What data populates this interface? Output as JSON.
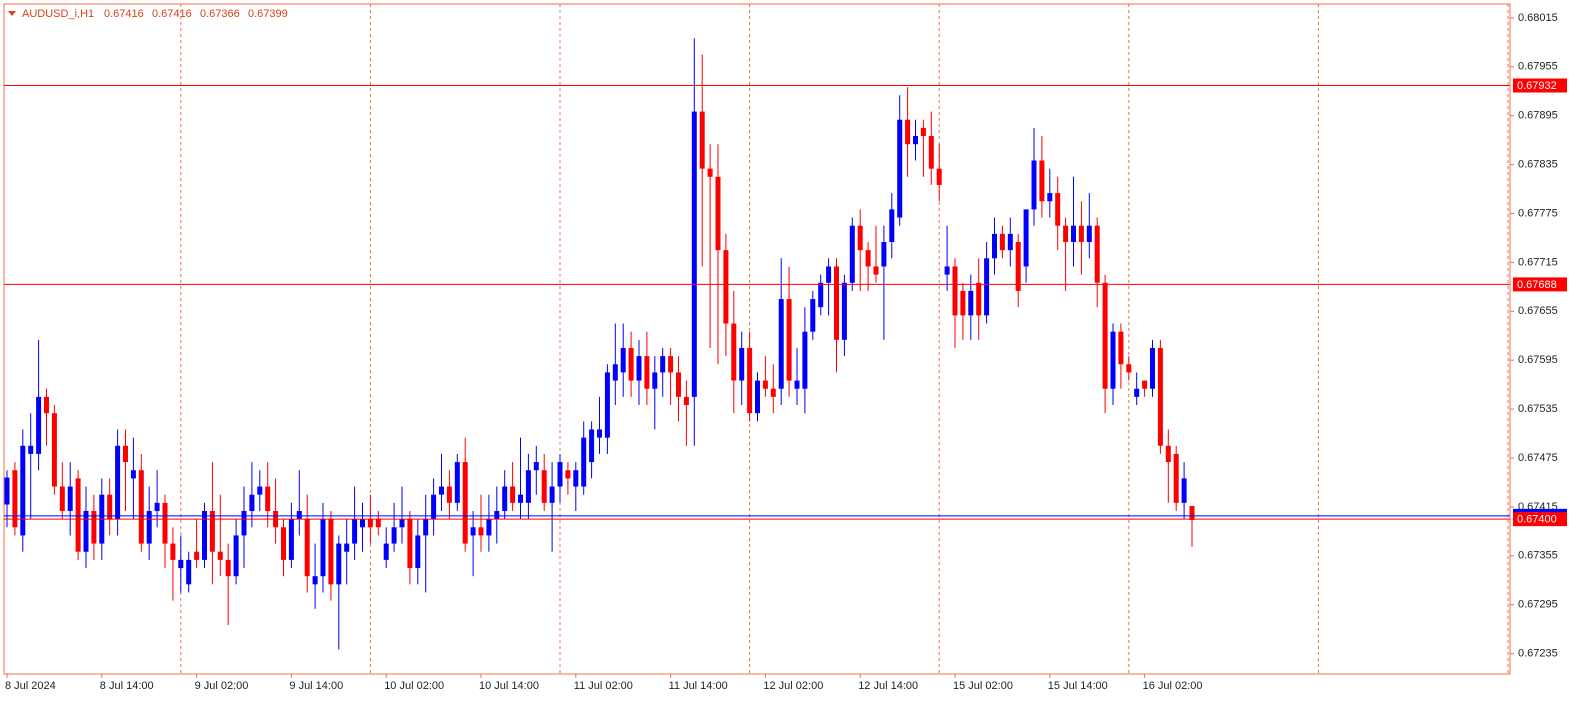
{
  "chart_data": {
    "type": "candlestick",
    "title": "AUDUSD_i,H1",
    "categories": [
      "8 Jul 2024",
      null,
      null,
      null,
      null,
      null,
      null,
      null,
      null,
      null,
      null,
      null,
      "8 Jul 14:00",
      null,
      null,
      null,
      null,
      null,
      null,
      null,
      null,
      null,
      null,
      null,
      "9 Jul 02:00",
      null,
      null,
      null,
      null,
      null,
      null,
      null,
      null,
      null,
      null,
      null,
      "9 Jul 14:00",
      null,
      null,
      null,
      null,
      null,
      null,
      null,
      null,
      null,
      null,
      null,
      "10 Jul 02:00",
      null,
      null,
      null,
      null,
      null,
      null,
      null,
      null,
      null,
      null,
      null,
      "10 Jul 14:00",
      null,
      null,
      null,
      null,
      null,
      null,
      null,
      null,
      null,
      null,
      null,
      "11 Jul 02:00",
      null,
      null,
      null,
      null,
      null,
      null,
      null,
      null,
      null,
      null,
      null,
      "11 Jul 14:00",
      null,
      null,
      null,
      null,
      null,
      null,
      null,
      null,
      null,
      null,
      null,
      "12 Jul 02:00",
      null,
      null,
      null,
      null,
      null,
      null,
      null,
      null,
      null,
      null,
      null,
      "12 Jul 14:00",
      null,
      null,
      null,
      null,
      null,
      null,
      null,
      null,
      null,
      null,
      null,
      "15 Jul 02:00",
      null,
      null,
      null,
      null,
      null,
      null,
      null,
      null,
      null,
      null,
      null,
      "15 Jul 14:00",
      null,
      null,
      null,
      null,
      null,
      null,
      null,
      null,
      null,
      null,
      null,
      "16 Jul 02:00",
      null,
      null,
      null,
      null,
      null,
      null
    ],
    "open": [
      0.67418,
      0.6746,
      0.6738,
      0.6748,
      0.6748,
      0.6755,
      0.6753,
      0.6744,
      0.6741,
      0.6745,
      0.6736,
      0.6741,
      0.6737,
      0.6743,
      0.674,
      0.6749,
      0.6745,
      0.6746,
      0.6737,
      0.6741,
      0.6742,
      0.6737,
      0.6734,
      0.6732,
      0.6736,
      0.6735,
      0.6741,
      0.6736,
      0.6735,
      0.6733,
      0.6738,
      0.6741,
      0.6743,
      0.6744,
      0.6741,
      0.6739,
      0.6735,
      0.674,
      0.674,
      0.6732,
      0.6733,
      0.674,
      0.6732,
      0.6736,
      0.6737,
      0.6739,
      0.674,
      0.674,
      0.6735,
      0.6737,
      0.6739,
      0.674,
      0.6734,
      0.6738,
      0.674,
      0.6743,
      0.6744,
      0.6742,
      0.6747,
      0.6738,
      0.6739,
      0.6738,
      0.674,
      0.6741,
      0.6744,
      0.6742,
      0.6742,
      0.6746,
      0.6746,
      0.6742,
      0.6744,
      0.6746,
      0.6744,
      0.6744,
      0.6747,
      0.675,
      0.675,
      0.6757,
      0.6758,
      0.6761,
      0.6757,
      0.676,
      0.6756,
      0.6758,
      0.676,
      0.6758,
      0.6755,
      0.6755,
      0.679,
      0.6783,
      0.6782,
      0.6773,
      0.6764,
      0.6757,
      0.6761,
      0.6753,
      0.6757,
      0.6756,
      0.6756,
      0.6767,
      0.6756,
      0.6756,
      0.6763,
      0.6766,
      0.6769,
      0.6771,
      0.6762,
      0.6769,
      0.6776,
      0.6773,
      0.6771,
      0.6771,
      0.6774,
      0.6777,
      0.6789,
      0.6786,
      0.6788,
      0.6787,
      0.6783,
      0.677,
      0.6771,
      0.6768,
      0.6765,
      0.6769,
      0.6765,
      0.6772,
      0.6775,
      0.6773,
      0.6774,
      0.6771,
      0.6778,
      0.6784,
      0.6779,
      0.678,
      0.6776,
      0.6774,
      0.6776,
      0.6774,
      0.6776,
      0.6769,
      0.6756,
      0.6763,
      0.6759,
      0.6755,
      0.6757,
      0.6756,
      0.6761,
      0.6749,
      0.6748,
      0.6742,
      0.67416
    ],
    "high": [
      0.6746,
      0.6747,
      0.6751,
      0.6753,
      0.6762,
      0.6756,
      0.6754,
      0.6747,
      0.6747,
      0.6746,
      0.6744,
      0.6743,
      0.6745,
      0.6745,
      0.6751,
      0.6751,
      0.675,
      0.6748,
      0.6744,
      0.6746,
      0.6743,
      0.6739,
      0.6738,
      0.6736,
      0.674,
      0.6742,
      0.6747,
      0.6743,
      0.6737,
      0.674,
      0.6744,
      0.6747,
      0.6746,
      0.6747,
      0.6745,
      0.674,
      0.6742,
      0.6746,
      0.6743,
      0.6737,
      0.6742,
      0.6741,
      0.6738,
      0.674,
      0.6744,
      0.6742,
      0.6743,
      0.6741,
      0.6739,
      0.6742,
      0.6744,
      0.6741,
      0.674,
      0.6743,
      0.6745,
      0.6748,
      0.6746,
      0.6748,
      0.675,
      0.6741,
      0.6743,
      0.6743,
      0.6744,
      0.6746,
      0.6747,
      0.675,
      0.6748,
      0.6749,
      0.6748,
      0.6747,
      0.6748,
      0.6747,
      0.6747,
      0.6752,
      0.6752,
      0.6755,
      0.6759,
      0.6764,
      0.6764,
      0.6763,
      0.6762,
      0.6763,
      0.676,
      0.6761,
      0.6761,
      0.676,
      0.6757,
      0.6799,
      0.6797,
      0.6786,
      0.6786,
      0.6775,
      0.6768,
      0.6763,
      0.6763,
      0.6758,
      0.676,
      0.6759,
      0.6772,
      0.6771,
      0.6761,
      0.6766,
      0.6768,
      0.677,
      0.6772,
      0.6772,
      0.677,
      0.6777,
      0.6778,
      0.6774,
      0.6776,
      0.6776,
      0.678,
      0.6792,
      0.6793,
      0.6789,
      0.6789,
      0.679,
      0.6786,
      0.6776,
      0.6772,
      0.6769,
      0.677,
      0.6772,
      0.6774,
      0.6777,
      0.6776,
      0.6777,
      0.6775,
      0.6778,
      0.6788,
      0.6787,
      0.6783,
      0.6782,
      0.6777,
      0.6782,
      0.6779,
      0.678,
      0.6777,
      0.677,
      0.6764,
      0.6764,
      0.676,
      0.6758,
      0.6757,
      0.6762,
      0.6762,
      0.6751,
      0.6749,
      0.6747,
      0.67416
    ],
    "low": [
      0.6739,
      0.6738,
      0.6736,
      0.674,
      0.6746,
      0.6749,
      0.6743,
      0.674,
      0.6738,
      0.6735,
      0.6734,
      0.6735,
      0.6735,
      0.6738,
      0.6738,
      0.6741,
      0.674,
      0.6736,
      0.6735,
      0.6739,
      0.6734,
      0.673,
      0.6731,
      0.6731,
      0.6734,
      0.6734,
      0.6732,
      0.6733,
      0.6727,
      0.6732,
      0.6734,
      0.6739,
      0.6741,
      0.6739,
      0.6737,
      0.6733,
      0.6734,
      0.6738,
      0.6731,
      0.6729,
      0.6731,
      0.673,
      0.6724,
      0.6732,
      0.6735,
      0.6736,
      0.6737,
      0.6738,
      0.6734,
      0.6736,
      0.6737,
      0.6732,
      0.6732,
      0.6731,
      0.6738,
      0.6741,
      0.674,
      0.6741,
      0.6736,
      0.6733,
      0.6736,
      0.6736,
      0.6737,
      0.674,
      0.6741,
      0.674,
      0.674,
      0.6743,
      0.6741,
      0.6736,
      0.6742,
      0.6743,
      0.6741,
      0.6743,
      0.6745,
      0.6748,
      0.6748,
      0.6754,
      0.6755,
      0.6755,
      0.6754,
      0.6754,
      0.6751,
      0.6755,
      0.6754,
      0.6752,
      0.6749,
      0.6749,
      0.6771,
      0.6761,
      0.6759,
      0.676,
      0.6753,
      0.6754,
      0.6752,
      0.6752,
      0.6755,
      0.6753,
      0.6754,
      0.6755,
      0.6754,
      0.6753,
      0.6762,
      0.6765,
      0.6765,
      0.6758,
      0.676,
      0.6768,
      0.6768,
      0.6768,
      0.6769,
      0.6762,
      0.6772,
      0.6776,
      0.6782,
      0.6784,
      0.6782,
      0.6781,
      0.6779,
      0.6768,
      0.6761,
      0.6762,
      0.6762,
      0.6762,
      0.6764,
      0.677,
      0.6772,
      0.6771,
      0.6766,
      0.6769,
      0.6776,
      0.6777,
      0.6777,
      0.6773,
      0.6768,
      0.6771,
      0.677,
      0.6772,
      0.6766,
      0.6753,
      0.6754,
      0.6756,
      0.6757,
      0.6754,
      0.6755,
      0.6755,
      0.6748,
      0.6742,
      0.6741,
      0.674,
      0.67366
    ],
    "close": [
      0.67451,
      0.6739,
      0.6749,
      0.6749,
      0.6755,
      0.6753,
      0.6744,
      0.6741,
      0.6744,
      0.6736,
      0.6741,
      0.6737,
      0.6743,
      0.674,
      0.6749,
      0.6747,
      0.6746,
      0.6737,
      0.6741,
      0.6742,
      0.6737,
      0.6735,
      0.6735,
      0.6735,
      0.6735,
      0.6741,
      0.6736,
      0.6735,
      0.6733,
      0.6738,
      0.6741,
      0.6743,
      0.6744,
      0.6741,
      0.6739,
      0.6735,
      0.674,
      0.6741,
      0.6733,
      0.6733,
      0.674,
      0.6732,
      0.6737,
      0.6737,
      0.674,
      0.674,
      0.6739,
      0.6739,
      0.6737,
      0.6739,
      0.674,
      0.6734,
      0.6738,
      0.674,
      0.6743,
      0.6744,
      0.6742,
      0.6747,
      0.6737,
      0.6739,
      0.6738,
      0.674,
      0.6741,
      0.6744,
      0.6742,
      0.6743,
      0.6746,
      0.6747,
      0.6742,
      0.6744,
      0.6747,
      0.6745,
      0.6746,
      0.675,
      0.6751,
      0.6751,
      0.6758,
      0.6759,
      0.6761,
      0.6757,
      0.676,
      0.6756,
      0.6758,
      0.676,
      0.6758,
      0.6755,
      0.6754,
      0.679,
      0.6783,
      0.6782,
      0.6773,
      0.6764,
      0.6757,
      0.6761,
      0.6753,
      0.6757,
      0.6756,
      0.6755,
      0.6767,
      0.6757,
      0.6757,
      0.6763,
      0.6767,
      0.6769,
      0.6771,
      0.6762,
      0.6769,
      0.6776,
      0.6773,
      0.6771,
      0.677,
      0.6774,
      0.6778,
      0.6789,
      0.6786,
      0.6787,
      0.6787,
      0.6783,
      0.6781,
      0.6771,
      0.6765,
      0.6765,
      0.6768,
      0.6765,
      0.6772,
      0.6775,
      0.6773,
      0.6775,
      0.6768,
      0.6778,
      0.6784,
      0.6779,
      0.678,
      0.6776,
      0.6774,
      0.6776,
      0.6774,
      0.6776,
      0.6769,
      0.6756,
      0.6763,
      0.6759,
      0.6758,
      0.6756,
      0.6756,
      0.6761,
      0.6749,
      0.6747,
      0.6742,
      0.6745,
      0.67399
    ],
    "up_color": "#0000ff",
    "down_color": "#ff0000",
    "ylim": [
      0.6721,
      0.68032
    ],
    "yticks": [
      0.68015,
      0.67955,
      0.67895,
      0.67835,
      0.67775,
      0.67715,
      0.67655,
      0.67595,
      0.67535,
      0.67475,
      0.67415,
      0.67355,
      0.67295,
      0.67235
    ],
    "levels": [
      {
        "value": 0.67932,
        "color": "#ff0000"
      },
      {
        "value": 0.67688,
        "color": "#ff0000"
      },
      {
        "value": 0.67404,
        "color": "#0000ff"
      },
      {
        "value": 0.674,
        "label": "0.67400",
        "color": "#ff0000"
      }
    ],
    "grid": true
  }
}
